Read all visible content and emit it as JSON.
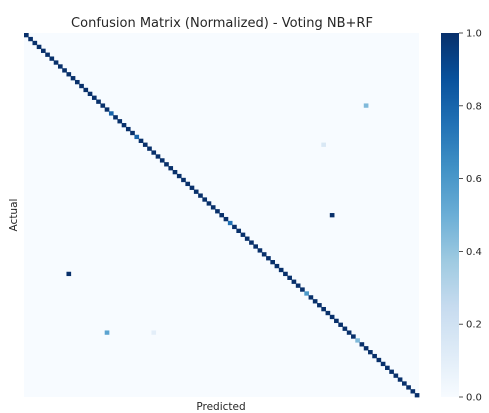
{
  "chart_data": {
    "type": "heatmap",
    "title": "Confusion Matrix (Normalized) - Voting NB+RF",
    "xlabel": "Predicted",
    "ylabel": "Actual",
    "n_classes": 93,
    "colormap": "Blues",
    "colormap_stops": [
      "#f7fbff",
      "#deebf7",
      "#c6dbef",
      "#9ecae1",
      "#6baed6",
      "#4292c6",
      "#2171b5",
      "#08519c",
      "#08306b"
    ],
    "value_range": [
      0.0,
      1.0
    ],
    "colorbar_ticks": [
      "0.0",
      "0.2",
      "0.4",
      "0.6",
      "0.8",
      "1.0"
    ],
    "show_tick_labels": false,
    "diagonal_default": 1.0,
    "diagonal_overrides": [
      {
        "i": 20,
        "value": 0.8
      },
      {
        "i": 26,
        "value": 0.8
      },
      {
        "i": 48,
        "value": 0.75
      },
      {
        "i": 66,
        "value": 0.6
      },
      {
        "i": 78,
        "value": 0.45
      }
    ],
    "off_diagonal": [
      {
        "row": 18,
        "col": 80,
        "value": 0.45
      },
      {
        "row": 28,
        "col": 70,
        "value": 0.15
      },
      {
        "row": 46,
        "col": 72,
        "value": 1.0
      },
      {
        "row": 61,
        "col": 10,
        "value": 1.0
      },
      {
        "row": 76,
        "col": 19,
        "value": 0.55
      },
      {
        "row": 76,
        "col": 30,
        "value": 0.1
      }
    ]
  }
}
